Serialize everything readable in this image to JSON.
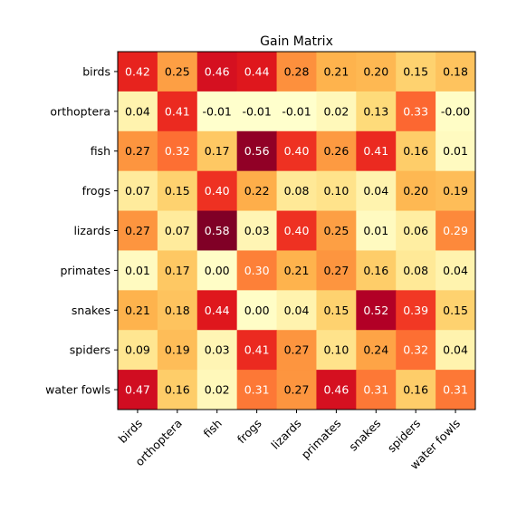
{
  "chart_data": {
    "type": "heatmap",
    "title": "Gain Matrix",
    "xlabel": "",
    "ylabel": "",
    "x_categories": [
      "birds",
      "orthoptera",
      "fish",
      "frogs",
      "lizards",
      "primates",
      "snakes",
      "spiders",
      "water fowls"
    ],
    "y_categories": [
      "birds",
      "orthoptera",
      "fish",
      "frogs",
      "lizards",
      "primates",
      "snakes",
      "spiders",
      "water fowls"
    ],
    "values": [
      [
        0.42,
        0.25,
        0.46,
        0.44,
        0.28,
        0.21,
        0.2,
        0.15,
        0.18
      ],
      [
        0.04,
        0.41,
        -0.01,
        -0.01,
        -0.01,
        0.02,
        0.13,
        0.33,
        -0.0
      ],
      [
        0.27,
        0.32,
        0.17,
        0.56,
        0.4,
        0.26,
        0.41,
        0.16,
        0.01
      ],
      [
        0.07,
        0.15,
        0.4,
        0.22,
        0.08,
        0.1,
        0.04,
        0.2,
        0.19
      ],
      [
        0.27,
        0.07,
        0.58,
        0.03,
        0.4,
        0.25,
        0.01,
        0.06,
        0.29
      ],
      [
        0.01,
        0.17,
        0.0,
        0.3,
        0.21,
        0.27,
        0.16,
        0.08,
        0.04
      ],
      [
        0.21,
        0.18,
        0.44,
        0.0,
        0.04,
        0.15,
        0.52,
        0.39,
        0.15
      ],
      [
        0.09,
        0.19,
        0.03,
        0.41,
        0.27,
        0.1,
        0.24,
        0.32,
        0.04
      ],
      [
        0.47,
        0.16,
        0.02,
        0.31,
        0.27,
        0.46,
        0.31,
        0.16,
        0.31
      ]
    ],
    "value_labels": [
      [
        "0.42",
        "0.25",
        "0.46",
        "0.44",
        "0.28",
        "0.21",
        "0.20",
        "0.15",
        "0.18"
      ],
      [
        "0.04",
        "0.41",
        "-0.01",
        "-0.01",
        "-0.01",
        "0.02",
        "0.13",
        "0.33",
        "-0.00"
      ],
      [
        "0.27",
        "0.32",
        "0.17",
        "0.56",
        "0.40",
        "0.26",
        "0.41",
        "0.16",
        "0.01"
      ],
      [
        "0.07",
        "0.15",
        "0.40",
        "0.22",
        "0.08",
        "0.10",
        "0.04",
        "0.20",
        "0.19"
      ],
      [
        "0.27",
        "0.07",
        "0.58",
        "0.03",
        "0.40",
        "0.25",
        "0.01",
        "0.06",
        "0.29"
      ],
      [
        "0.01",
        "0.17",
        "0.00",
        "0.30",
        "0.21",
        "0.27",
        "0.16",
        "0.08",
        "0.04"
      ],
      [
        "0.21",
        "0.18",
        "0.44",
        "0.00",
        "0.04",
        "0.15",
        "0.52",
        "0.39",
        "0.15"
      ],
      [
        "0.09",
        "0.19",
        "0.03",
        "0.41",
        "0.27",
        "0.10",
        "0.24",
        "0.32",
        "0.04"
      ],
      [
        "0.47",
        "0.16",
        "0.02",
        "0.31",
        "0.27",
        "0.46",
        "0.31",
        "0.16",
        "0.31"
      ]
    ],
    "colormap": "YlOrRd",
    "grid": false,
    "legend": "none",
    "x_tick_rotation": "45 degrees",
    "colors": {
      "text_on_dark": "#ffffff",
      "text_on_light": "#000000",
      "axis": "#000000"
    }
  }
}
